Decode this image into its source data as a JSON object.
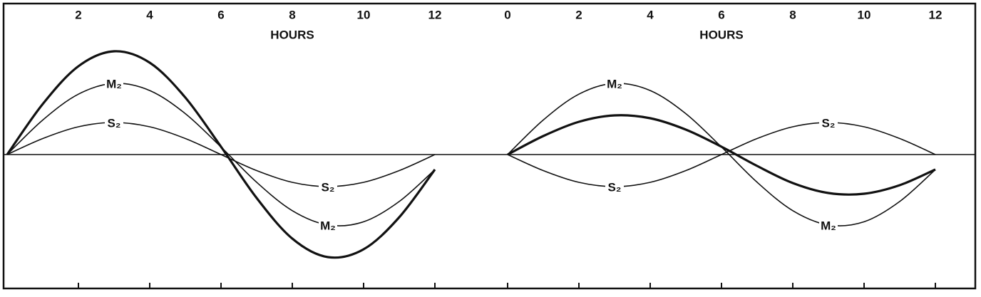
{
  "chart_data": [
    {
      "type": "line",
      "xlabel": "HOURS",
      "xlim": [
        -0.1,
        14.04
      ],
      "xticks": [
        2,
        4,
        6,
        8,
        10,
        12
      ],
      "ylim": [
        -1.88,
        2.12
      ],
      "x": [
        0,
        1,
        2,
        3,
        4,
        5,
        6,
        7,
        8,
        9,
        10,
        11,
        12
      ],
      "series": [
        {
          "name": "M₂",
          "color": "#111111",
          "values": [
            0,
            0.485,
            0.848,
            0.999,
            0.899,
            0.574,
            0.106,
            -0.389,
            -0.788,
            -0.988,
            -0.944,
            -0.659,
            -0.211
          ]
        },
        {
          "name": "S₂",
          "color": "#111111",
          "values": [
            0,
            0.225,
            0.39,
            0.45,
            0.39,
            0.225,
            0,
            -0.225,
            -0.39,
            -0.45,
            -0.39,
            -0.225,
            0
          ]
        },
        {
          "color": "#111111",
          "values": [
            0,
            0.71,
            1.24,
            1.45,
            1.29,
            0.8,
            0.11,
            -0.61,
            -1.18,
            -1.44,
            -1.33,
            -0.88,
            -0.21
          ]
        }
      ]
    },
    {
      "type": "line",
      "xlabel": "HOURS",
      "xlim": [
        0,
        13.12
      ],
      "xticks": [
        0,
        2,
        4,
        6,
        8,
        10,
        12
      ],
      "ylim": [
        -1.88,
        2.12
      ],
      "x": [
        0,
        1,
        2,
        3,
        4,
        5,
        6,
        7,
        8,
        9,
        10,
        11,
        12
      ],
      "series": [
        {
          "name": "M₂",
          "color": "#111111",
          "values": [
            0,
            0.485,
            0.848,
            0.999,
            0.899,
            0.574,
            0.106,
            -0.389,
            -0.788,
            -0.988,
            -0.944,
            -0.659,
            -0.211
          ]
        },
        {
          "name": "S₂",
          "color": "#111111",
          "values": [
            0,
            -0.225,
            -0.39,
            -0.45,
            -0.39,
            -0.225,
            0,
            0.225,
            0.39,
            0.45,
            0.39,
            0.225,
            0
          ]
        },
        {
          "color": "#111111",
          "values": [
            0,
            0.26,
            0.46,
            0.55,
            0.51,
            0.35,
            0.11,
            -0.16,
            -0.4,
            -0.54,
            -0.55,
            -0.43,
            -0.21
          ]
        }
      ]
    }
  ]
}
